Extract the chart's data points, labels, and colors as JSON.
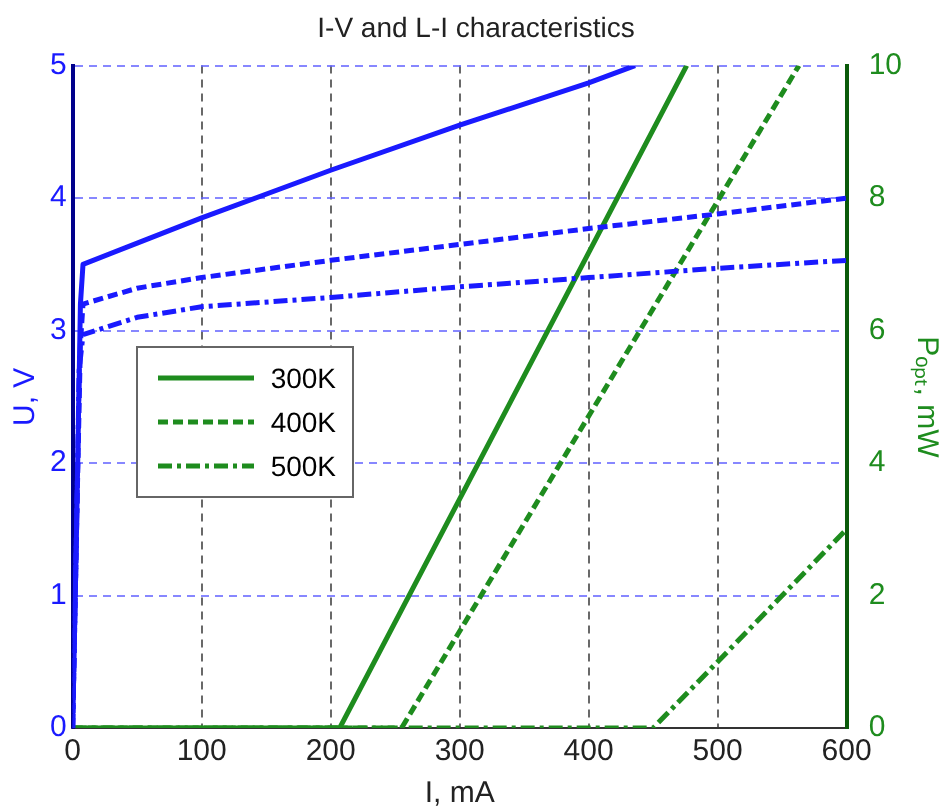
{
  "chart_data": {
    "type": "line",
    "title": "I-V and L-I characteristics",
    "xlabel": "I, mA",
    "ylabel": "U, V",
    "y2label": "Pₒₚₜ, mW",
    "xlim": [
      0,
      600
    ],
    "xticks": [
      0,
      100,
      200,
      300,
      400,
      500,
      600
    ],
    "ylim": [
      0,
      5
    ],
    "yticks": [
      0,
      1,
      2,
      3,
      4,
      5
    ],
    "y2lim": [
      0,
      10
    ],
    "y2ticks": [
      0,
      2,
      4,
      6,
      8,
      10
    ],
    "grid": true,
    "legend": "left",
    "marker": "none",
    "series": [
      {
        "color": "#1a1aff",
        "axis": "y",
        "line_style": "solid",
        "x": [
          0,
          3,
          6,
          8,
          50,
          100,
          200,
          300,
          400,
          436
        ],
        "values": [
          0,
          1.5,
          3.2,
          3.5,
          3.66,
          3.85,
          4.21,
          4.55,
          4.87,
          5.0
        ]
      },
      {
        "color": "#1a1aff",
        "axis": "y",
        "line_style": "dashed",
        "x": [
          0,
          3,
          6,
          8,
          50,
          100,
          200,
          300,
          400,
          500,
          600
        ],
        "values": [
          0,
          1.5,
          2.9,
          3.2,
          3.32,
          3.4,
          3.53,
          3.65,
          3.77,
          3.88,
          4.0
        ]
      },
      {
        "color": "#1a1aff",
        "axis": "y",
        "line_style": "dashdot",
        "x": [
          0,
          3,
          5,
          8,
          50,
          100,
          200,
          300,
          400,
          500,
          600
        ],
        "values": [
          0,
          1.5,
          2.7,
          2.97,
          3.1,
          3.18,
          3.25,
          3.33,
          3.4,
          3.47,
          3.53
        ]
      },
      {
        "name": "300K",
        "color": "#1e8c1e",
        "axis": "y2",
        "line_style": "solid",
        "x": [
          0,
          207,
          476
        ],
        "values": [
          0,
          0,
          10
        ]
      },
      {
        "name": "400K",
        "color": "#1e8c1e",
        "axis": "y2",
        "line_style": "dashed",
        "x": [
          0,
          255,
          563
        ],
        "values": [
          0,
          0,
          10
        ]
      },
      {
        "name": "500K",
        "color": "#1e8c1e",
        "axis": "y2",
        "line_style": "dashdot",
        "x": [
          0,
          450,
          600
        ],
        "values": [
          0,
          0,
          3
        ]
      }
    ]
  }
}
